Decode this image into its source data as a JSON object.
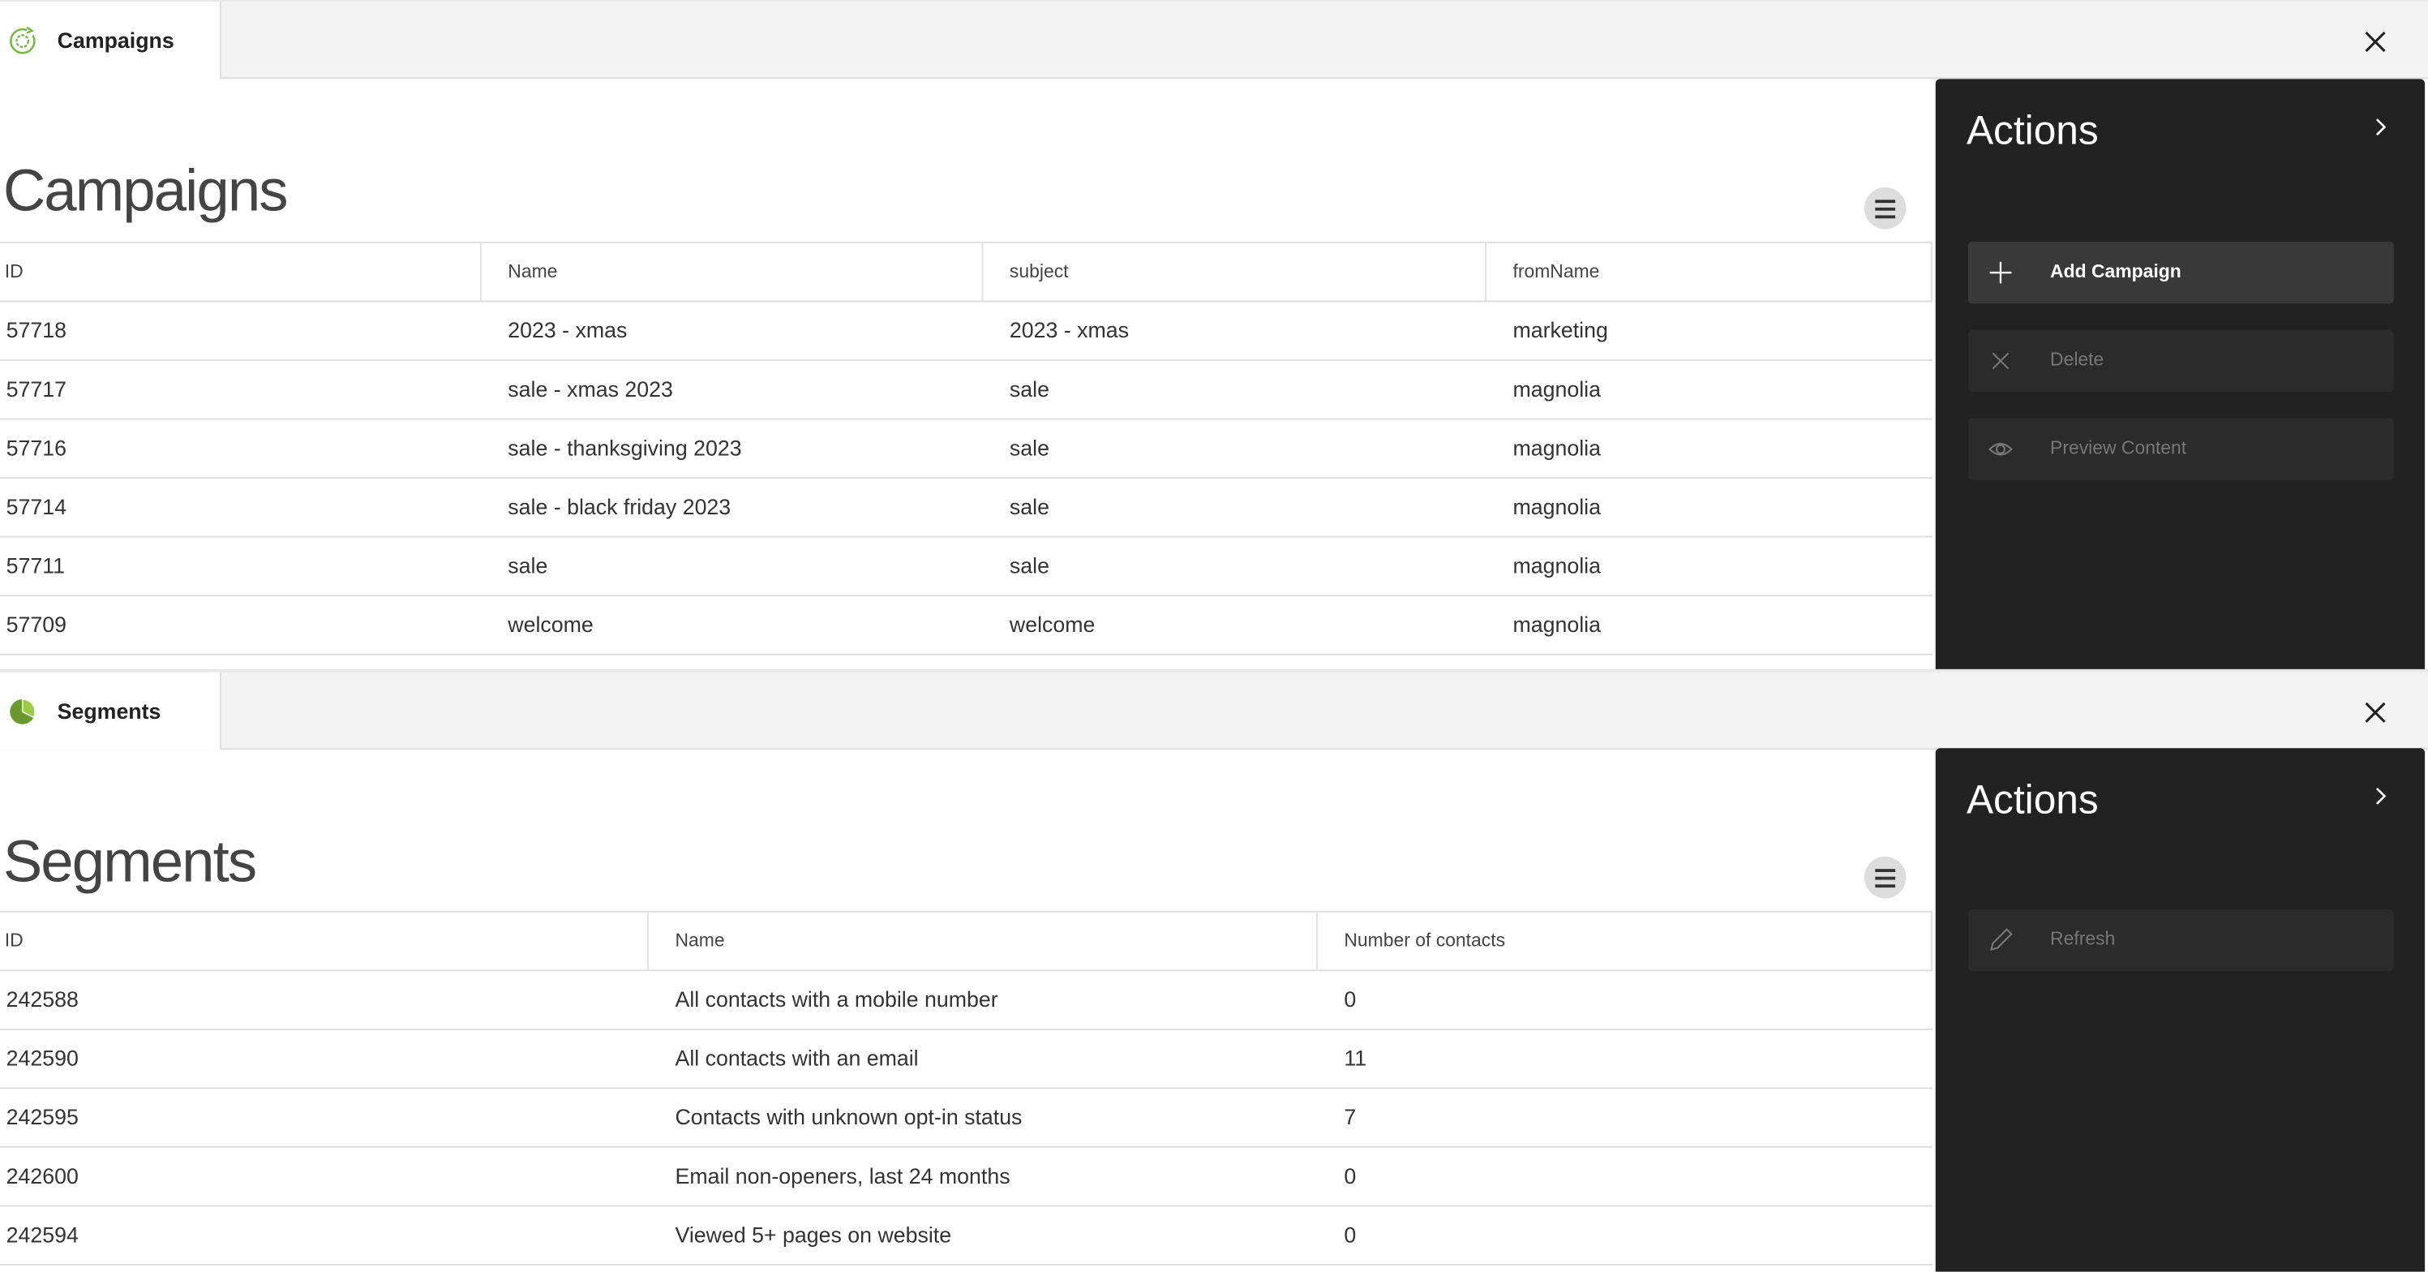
{
  "campaigns": {
    "tab_label": "Campaigns",
    "heading": "Campaigns",
    "columns": [
      "ID",
      "Name",
      "subject",
      "fromName"
    ],
    "rows": [
      [
        "57718",
        "2023 - xmas",
        "2023 - xmas",
        "marketing"
      ],
      [
        "57717",
        "sale - xmas 2023",
        "sale",
        "magnolia"
      ],
      [
        "57716",
        "sale - thanksgiving 2023",
        "sale",
        "magnolia"
      ],
      [
        "57714",
        "sale - black friday 2023",
        "sale",
        "magnolia"
      ],
      [
        "57711",
        "sale",
        "sale",
        "magnolia"
      ],
      [
        "57709",
        "welcome",
        "welcome",
        "magnolia"
      ]
    ],
    "actions": {
      "title": "Actions",
      "buttons": [
        {
          "label": "Add Campaign",
          "icon": "plus-icon",
          "enabled": true
        },
        {
          "label": "Delete",
          "icon": "x-icon",
          "enabled": false
        },
        {
          "label": "Preview Content",
          "icon": "eye-icon",
          "enabled": false
        }
      ]
    }
  },
  "segments": {
    "tab_label": "Segments",
    "heading": "Segments",
    "columns": [
      "ID",
      "Name",
      "Number of contacts"
    ],
    "rows": [
      [
        "242588",
        "All contacts with a mobile number",
        "0"
      ],
      [
        "242590",
        "All contacts with an email",
        "11"
      ],
      [
        "242595",
        "Contacts with unknown opt-in status",
        "7"
      ],
      [
        "242600",
        "Email non-openers, last 24 months",
        "0"
      ],
      [
        "242594",
        "Viewed 5+ pages on website",
        "0"
      ]
    ],
    "actions": {
      "title": "Actions",
      "buttons": [
        {
          "label": "Refresh",
          "icon": "pencil-icon",
          "enabled": false
        }
      ]
    }
  },
  "colors": {
    "accent_green": "#7ab648",
    "actions_bg": "#222222"
  }
}
